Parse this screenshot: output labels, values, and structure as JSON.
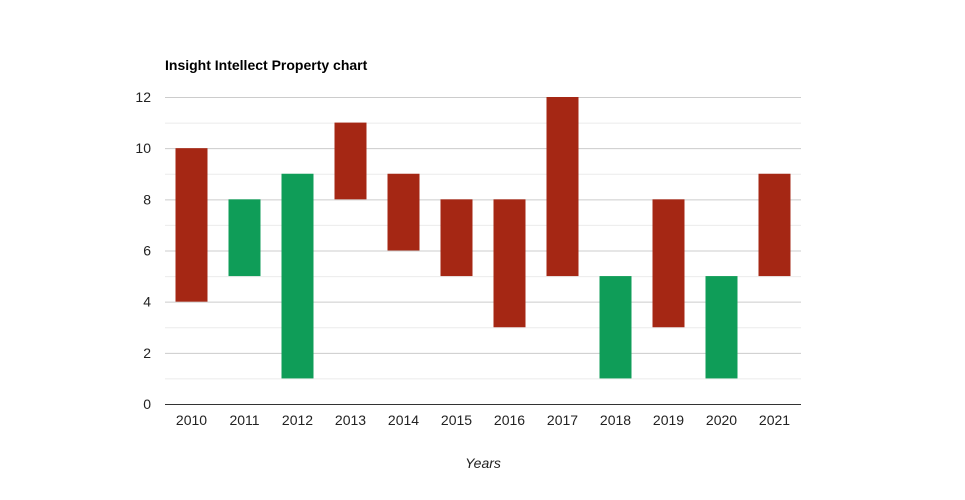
{
  "chart_data": {
    "type": "candlestick",
    "title": "Insight Intellect Property chart",
    "xlabel": "Years",
    "ylabel": "",
    "ylim": [
      0,
      12
    ],
    "yticks": [
      0,
      2,
      4,
      6,
      8,
      10,
      12
    ],
    "ytick_labels": [
      "0",
      "2",
      "4",
      "6",
      "8",
      "10",
      "12"
    ],
    "minor_gridlines": true,
    "categories": [
      "2010",
      "2011",
      "2012",
      "2013",
      "2014",
      "2015",
      "2016",
      "2017",
      "2018",
      "2019",
      "2020",
      "2021"
    ],
    "open": [
      10,
      5,
      1,
      11,
      9,
      8,
      8,
      12,
      1,
      8,
      1,
      9
    ],
    "close": [
      4,
      8,
      9,
      8,
      6,
      5,
      3,
      5,
      5,
      3,
      5,
      5
    ],
    "colors": {
      "increasing": "#0f9d58",
      "decreasing": "#a52714",
      "grid": "#cccccc",
      "axis": "#333333"
    }
  }
}
